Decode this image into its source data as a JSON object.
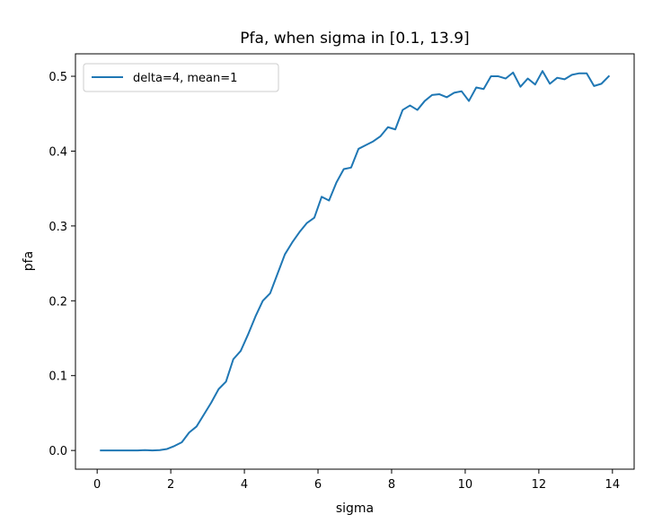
{
  "chart_data": {
    "type": "line",
    "title": "Pfa, when sigma in [0.1, 13.9]",
    "xlabel": "sigma",
    "ylabel": "pfa",
    "xlim": [
      -0.59,
      14.59
    ],
    "ylim": [
      -0.025,
      0.53
    ],
    "xticks": [
      0,
      2,
      4,
      6,
      8,
      10,
      12,
      14
    ],
    "yticks": [
      0.0,
      0.1,
      0.2,
      0.3,
      0.4,
      0.5
    ],
    "xtick_labels": [
      "0",
      "2",
      "4",
      "6",
      "8",
      "10",
      "12",
      "14"
    ],
    "ytick_labels": [
      "0.0",
      "0.1",
      "0.2",
      "0.3",
      "0.4",
      "0.5"
    ],
    "grid": false,
    "legend_position": "upper-left",
    "series": [
      {
        "name": "delta=4, mean=1",
        "color": "#1f77b4",
        "x": [
          0.1,
          0.3,
          0.5,
          0.7,
          0.9,
          1.1,
          1.3,
          1.5,
          1.7,
          1.9,
          2.1,
          2.3,
          2.5,
          2.7,
          2.9,
          3.1,
          3.3,
          3.5,
          3.7,
          3.9,
          4.1,
          4.3,
          4.5,
          4.7,
          4.9,
          5.1,
          5.3,
          5.5,
          5.7,
          5.9,
          6.1,
          6.3,
          6.5,
          6.7,
          6.9,
          7.1,
          7.3,
          7.5,
          7.7,
          7.9,
          8.1,
          8.3,
          8.5,
          8.7,
          8.9,
          9.1,
          9.3,
          9.5,
          9.7,
          9.9,
          10.1,
          10.3,
          10.5,
          10.7,
          10.9,
          11.1,
          11.3,
          11.5,
          11.7,
          11.9,
          12.1,
          12.3,
          12.5,
          12.7,
          12.9,
          13.1,
          13.3,
          13.5,
          13.7,
          13.9
        ],
        "y": [
          0.0,
          0.0,
          0.0,
          0.0,
          0.0,
          0.0,
          0.0005,
          0.0,
          0.0005,
          0.002,
          0.006,
          0.011,
          0.024,
          0.032,
          0.048,
          0.064,
          0.082,
          0.092,
          0.122,
          0.133,
          0.155,
          0.179,
          0.2,
          0.21,
          0.236,
          0.262,
          0.278,
          0.292,
          0.304,
          0.311,
          0.339,
          0.334,
          0.358,
          0.376,
          0.378,
          0.403,
          0.408,
          0.413,
          0.42,
          0.432,
          0.429,
          0.455,
          0.461,
          0.455,
          0.467,
          0.475,
          0.476,
          0.472,
          0.478,
          0.48,
          0.467,
          0.485,
          0.483,
          0.5,
          0.5,
          0.497,
          0.505,
          0.486,
          0.497,
          0.489,
          0.507,
          0.49,
          0.498,
          0.496,
          0.502,
          0.504,
          0.504,
          0.487,
          0.49,
          0.5
        ]
      }
    ]
  }
}
